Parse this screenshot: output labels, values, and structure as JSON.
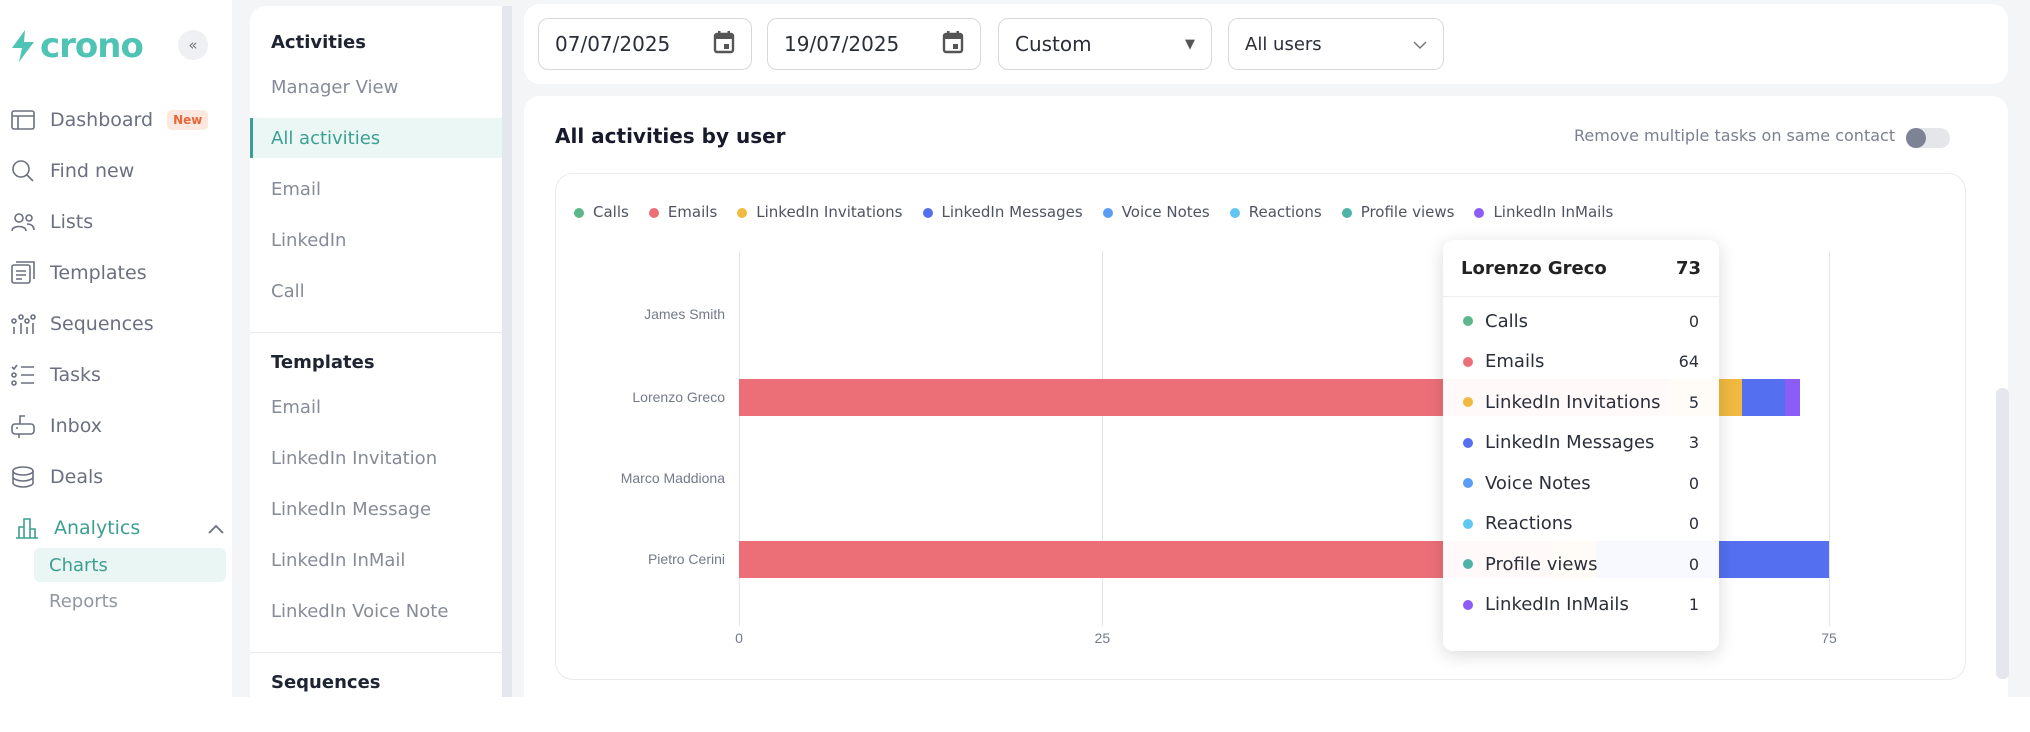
{
  "brand": "crono",
  "sidebar": {
    "items": [
      {
        "label": "Dashboard",
        "badge": "New",
        "icon": "dashboard-icon"
      },
      {
        "label": "Find new",
        "icon": "search-icon"
      },
      {
        "label": "Lists",
        "icon": "users-icon"
      },
      {
        "label": "Templates",
        "icon": "templates-icon"
      },
      {
        "label": "Sequences",
        "icon": "sequences-icon"
      },
      {
        "label": "Tasks",
        "icon": "tasks-icon"
      },
      {
        "label": "Inbox",
        "icon": "inbox-icon"
      },
      {
        "label": "Deals",
        "icon": "deals-icon"
      },
      {
        "label": "Analytics",
        "icon": "analytics-icon"
      }
    ],
    "sub": [
      "Charts",
      "Reports"
    ]
  },
  "panel": {
    "activities_header": "Activities",
    "activities": [
      "Manager View",
      "All activities",
      "Email",
      "LinkedIn",
      "Call"
    ],
    "templates_header": "Templates",
    "templates": [
      "Email",
      "LinkedIn Invitation",
      "LinkedIn Message",
      "LinkedIn InMail",
      "LinkedIn Voice Note"
    ],
    "sequences_header": "Sequences"
  },
  "filters": {
    "start_date": "07/07/2025",
    "end_date": "19/07/2025",
    "range": "Custom",
    "users": "All users"
  },
  "main": {
    "title": "All activities by user",
    "toggle_label": "Remove multiple tasks on same contact",
    "toggle_on": false
  },
  "chart_data": {
    "type": "bar",
    "orientation": "horizontal",
    "stacked": true,
    "title": "All activities by user",
    "categories": [
      "James Smith",
      "Lorenzo Greco",
      "Marco Maddiona",
      "Pietro Cerini"
    ],
    "xlim": [
      0,
      75
    ],
    "xticks": [
      0,
      25,
      75
    ],
    "legend_position": "top-left",
    "series": [
      {
        "name": "Calls",
        "color": "#5cb88a",
        "values": [
          0,
          0,
          0,
          0
        ]
      },
      {
        "name": "Emails",
        "color": "#ec6f78",
        "values": [
          0,
          64,
          0,
          56
        ]
      },
      {
        "name": "LinkedIn Invitations",
        "color": "#f0b940",
        "values": [
          0,
          5,
          0,
          3
        ]
      },
      {
        "name": "LinkedIn Messages",
        "color": "#5470f0",
        "values": [
          0,
          3,
          0,
          16
        ]
      },
      {
        "name": "Voice Notes",
        "color": "#5b9cf5",
        "values": [
          0,
          0,
          0,
          0
        ]
      },
      {
        "name": "Reactions",
        "color": "#62c6f2",
        "values": [
          0,
          0,
          0,
          0
        ]
      },
      {
        "name": "Profile views",
        "color": "#4fb3a7",
        "values": [
          0,
          0,
          0,
          0
        ]
      },
      {
        "name": "LinkedIn InMails",
        "color": "#8b5cf6",
        "values": [
          0,
          1,
          0,
          0
        ]
      }
    ]
  },
  "tooltip": {
    "name": "Lorenzo Greco",
    "total": "73",
    "rows": [
      {
        "label": "Calls",
        "value": "0"
      },
      {
        "label": "Emails",
        "value": "64"
      },
      {
        "label": "LinkedIn Invitations",
        "value": "5"
      },
      {
        "label": "LinkedIn Messages",
        "value": "3"
      },
      {
        "label": "Voice Notes",
        "value": "0"
      },
      {
        "label": "Reactions",
        "value": "0"
      },
      {
        "label": "Profile views",
        "value": "0"
      },
      {
        "label": "LinkedIn InMails",
        "value": "1"
      }
    ]
  }
}
